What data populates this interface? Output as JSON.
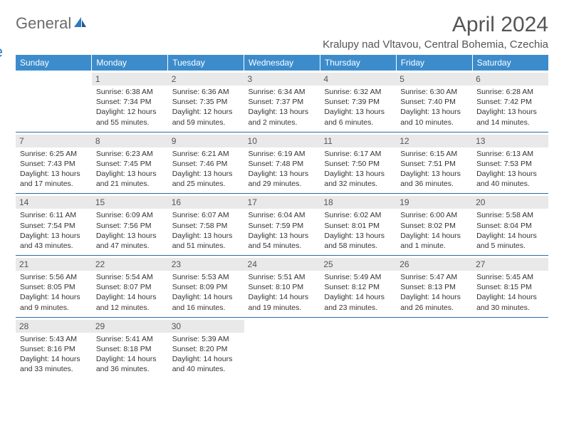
{
  "brand": {
    "part1": "General",
    "part2": "Blue"
  },
  "title": "April 2024",
  "location": "Kralupy nad Vltavou, Central Bohemia, Czechia",
  "colors": {
    "header_bg": "#3c8ccc",
    "header_text": "#ffffff",
    "daynum_bg": "#e9e9e9",
    "row_border": "#2f6ca3",
    "logo_gray": "#6b6b6b",
    "logo_blue": "#2f7abf"
  },
  "weekdays": [
    "Sunday",
    "Monday",
    "Tuesday",
    "Wednesday",
    "Thursday",
    "Friday",
    "Saturday"
  ],
  "weeks": [
    [
      null,
      {
        "n": "1",
        "sr": "Sunrise: 6:38 AM",
        "ss": "Sunset: 7:34 PM",
        "dl": "Daylight: 12 hours and 55 minutes."
      },
      {
        "n": "2",
        "sr": "Sunrise: 6:36 AM",
        "ss": "Sunset: 7:35 PM",
        "dl": "Daylight: 12 hours and 59 minutes."
      },
      {
        "n": "3",
        "sr": "Sunrise: 6:34 AM",
        "ss": "Sunset: 7:37 PM",
        "dl": "Daylight: 13 hours and 2 minutes."
      },
      {
        "n": "4",
        "sr": "Sunrise: 6:32 AM",
        "ss": "Sunset: 7:39 PM",
        "dl": "Daylight: 13 hours and 6 minutes."
      },
      {
        "n": "5",
        "sr": "Sunrise: 6:30 AM",
        "ss": "Sunset: 7:40 PM",
        "dl": "Daylight: 13 hours and 10 minutes."
      },
      {
        "n": "6",
        "sr": "Sunrise: 6:28 AM",
        "ss": "Sunset: 7:42 PM",
        "dl": "Daylight: 13 hours and 14 minutes."
      }
    ],
    [
      {
        "n": "7",
        "sr": "Sunrise: 6:25 AM",
        "ss": "Sunset: 7:43 PM",
        "dl": "Daylight: 13 hours and 17 minutes."
      },
      {
        "n": "8",
        "sr": "Sunrise: 6:23 AM",
        "ss": "Sunset: 7:45 PM",
        "dl": "Daylight: 13 hours and 21 minutes."
      },
      {
        "n": "9",
        "sr": "Sunrise: 6:21 AM",
        "ss": "Sunset: 7:46 PM",
        "dl": "Daylight: 13 hours and 25 minutes."
      },
      {
        "n": "10",
        "sr": "Sunrise: 6:19 AM",
        "ss": "Sunset: 7:48 PM",
        "dl": "Daylight: 13 hours and 29 minutes."
      },
      {
        "n": "11",
        "sr": "Sunrise: 6:17 AM",
        "ss": "Sunset: 7:50 PM",
        "dl": "Daylight: 13 hours and 32 minutes."
      },
      {
        "n": "12",
        "sr": "Sunrise: 6:15 AM",
        "ss": "Sunset: 7:51 PM",
        "dl": "Daylight: 13 hours and 36 minutes."
      },
      {
        "n": "13",
        "sr": "Sunrise: 6:13 AM",
        "ss": "Sunset: 7:53 PM",
        "dl": "Daylight: 13 hours and 40 minutes."
      }
    ],
    [
      {
        "n": "14",
        "sr": "Sunrise: 6:11 AM",
        "ss": "Sunset: 7:54 PM",
        "dl": "Daylight: 13 hours and 43 minutes."
      },
      {
        "n": "15",
        "sr": "Sunrise: 6:09 AM",
        "ss": "Sunset: 7:56 PM",
        "dl": "Daylight: 13 hours and 47 minutes."
      },
      {
        "n": "16",
        "sr": "Sunrise: 6:07 AM",
        "ss": "Sunset: 7:58 PM",
        "dl": "Daylight: 13 hours and 51 minutes."
      },
      {
        "n": "17",
        "sr": "Sunrise: 6:04 AM",
        "ss": "Sunset: 7:59 PM",
        "dl": "Daylight: 13 hours and 54 minutes."
      },
      {
        "n": "18",
        "sr": "Sunrise: 6:02 AM",
        "ss": "Sunset: 8:01 PM",
        "dl": "Daylight: 13 hours and 58 minutes."
      },
      {
        "n": "19",
        "sr": "Sunrise: 6:00 AM",
        "ss": "Sunset: 8:02 PM",
        "dl": "Daylight: 14 hours and 1 minute."
      },
      {
        "n": "20",
        "sr": "Sunrise: 5:58 AM",
        "ss": "Sunset: 8:04 PM",
        "dl": "Daylight: 14 hours and 5 minutes."
      }
    ],
    [
      {
        "n": "21",
        "sr": "Sunrise: 5:56 AM",
        "ss": "Sunset: 8:05 PM",
        "dl": "Daylight: 14 hours and 9 minutes."
      },
      {
        "n": "22",
        "sr": "Sunrise: 5:54 AM",
        "ss": "Sunset: 8:07 PM",
        "dl": "Daylight: 14 hours and 12 minutes."
      },
      {
        "n": "23",
        "sr": "Sunrise: 5:53 AM",
        "ss": "Sunset: 8:09 PM",
        "dl": "Daylight: 14 hours and 16 minutes."
      },
      {
        "n": "24",
        "sr": "Sunrise: 5:51 AM",
        "ss": "Sunset: 8:10 PM",
        "dl": "Daylight: 14 hours and 19 minutes."
      },
      {
        "n": "25",
        "sr": "Sunrise: 5:49 AM",
        "ss": "Sunset: 8:12 PM",
        "dl": "Daylight: 14 hours and 23 minutes."
      },
      {
        "n": "26",
        "sr": "Sunrise: 5:47 AM",
        "ss": "Sunset: 8:13 PM",
        "dl": "Daylight: 14 hours and 26 minutes."
      },
      {
        "n": "27",
        "sr": "Sunrise: 5:45 AM",
        "ss": "Sunset: 8:15 PM",
        "dl": "Daylight: 14 hours and 30 minutes."
      }
    ],
    [
      {
        "n": "28",
        "sr": "Sunrise: 5:43 AM",
        "ss": "Sunset: 8:16 PM",
        "dl": "Daylight: 14 hours and 33 minutes."
      },
      {
        "n": "29",
        "sr": "Sunrise: 5:41 AM",
        "ss": "Sunset: 8:18 PM",
        "dl": "Daylight: 14 hours and 36 minutes."
      },
      {
        "n": "30",
        "sr": "Sunrise: 5:39 AM",
        "ss": "Sunset: 8:20 PM",
        "dl": "Daylight: 14 hours and 40 minutes."
      },
      null,
      null,
      null,
      null
    ]
  ]
}
